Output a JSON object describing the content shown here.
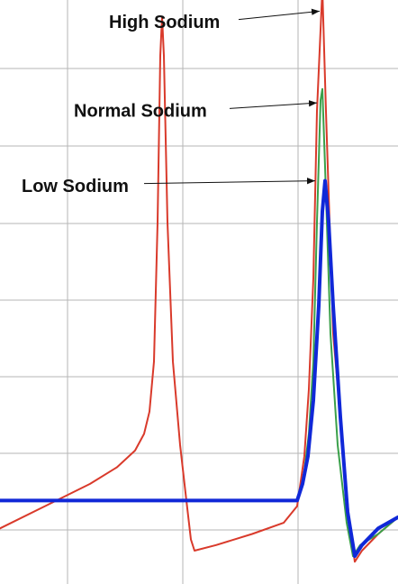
{
  "chart_data": {
    "type": "line",
    "title": "",
    "xlabel": "",
    "ylabel": "",
    "grid": true,
    "legend": "none",
    "x_unit_note": "",
    "xlim": [
      0,
      442
    ],
    "ylim": [
      -45,
      60
    ],
    "series": [
      {
        "color": "#d93a2b",
        "stroke_width": 2,
        "points": [
          [
            0,
            -35
          ],
          [
            50,
            -31
          ],
          [
            100,
            -27
          ],
          [
            130,
            -24
          ],
          [
            150,
            -21
          ],
          [
            160,
            -18
          ],
          [
            166,
            -14
          ],
          [
            171,
            -5
          ],
          [
            175,
            20
          ],
          [
            178,
            50
          ],
          [
            180,
            57
          ],
          [
            182,
            50
          ],
          [
            186,
            20
          ],
          [
            192,
            -5
          ],
          [
            200,
            -20
          ],
          [
            207,
            -30
          ],
          [
            212,
            -37
          ],
          [
            216,
            -39
          ],
          [
            240,
            -38
          ],
          [
            280,
            -36
          ],
          [
            315,
            -34
          ],
          [
            330,
            -31
          ],
          [
            338,
            -22
          ],
          [
            343,
            -10
          ],
          [
            348,
            10
          ],
          [
            352,
            40
          ],
          [
            358,
            62
          ],
          [
            362,
            40
          ],
          [
            370,
            0
          ],
          [
            378,
            -15
          ],
          [
            383,
            -25
          ],
          [
            388,
            -34
          ],
          [
            394,
            -41
          ],
          [
            402,
            -39
          ],
          [
            420,
            -36
          ],
          [
            442,
            -33
          ]
        ]
      },
      {
        "color": "#3aa04a",
        "stroke_width": 2,
        "points": [
          [
            0,
            -30
          ],
          [
            330,
            -30
          ],
          [
            337,
            -26
          ],
          [
            343,
            -18
          ],
          [
            348,
            -5
          ],
          [
            352,
            20
          ],
          [
            356,
            42
          ],
          [
            358,
            44
          ],
          [
            361,
            30
          ],
          [
            367,
            0
          ],
          [
            375,
            -20
          ],
          [
            385,
            -34
          ],
          [
            392,
            -40
          ],
          [
            400,
            -38
          ],
          [
            420,
            -36
          ],
          [
            442,
            -33
          ]
        ]
      },
      {
        "color": "#1028d8",
        "stroke_width": 4,
        "points": [
          [
            0,
            -30
          ],
          [
            330,
            -30
          ],
          [
            336,
            -27
          ],
          [
            342,
            -22
          ],
          [
            348,
            -12
          ],
          [
            354,
            5
          ],
          [
            358,
            22
          ],
          [
            361,
            27.5
          ],
          [
            365,
            20
          ],
          [
            370,
            5
          ],
          [
            378,
            -15
          ],
          [
            386,
            -32
          ],
          [
            394,
            -40
          ],
          [
            402,
            -38
          ],
          [
            420,
            -35
          ],
          [
            442,
            -33
          ]
        ]
      }
    ],
    "annotations": [
      {
        "text": "High Sodium",
        "label_pos": [
          121,
          55
        ],
        "arrow_from": [
          265,
          56.5
        ],
        "arrow_to": [
          355,
          58
        ]
      },
      {
        "text": "Normal Sodium",
        "label_pos": [
          82,
          39
        ],
        "arrow_from": [
          255,
          40.5
        ],
        "arrow_to": [
          352,
          41.5
        ]
      },
      {
        "text": "Low Sodium",
        "label_pos": [
          24,
          25.5
        ],
        "arrow_from": [
          160,
          27
        ],
        "arrow_to": [
          350,
          27.5
        ]
      }
    ]
  }
}
